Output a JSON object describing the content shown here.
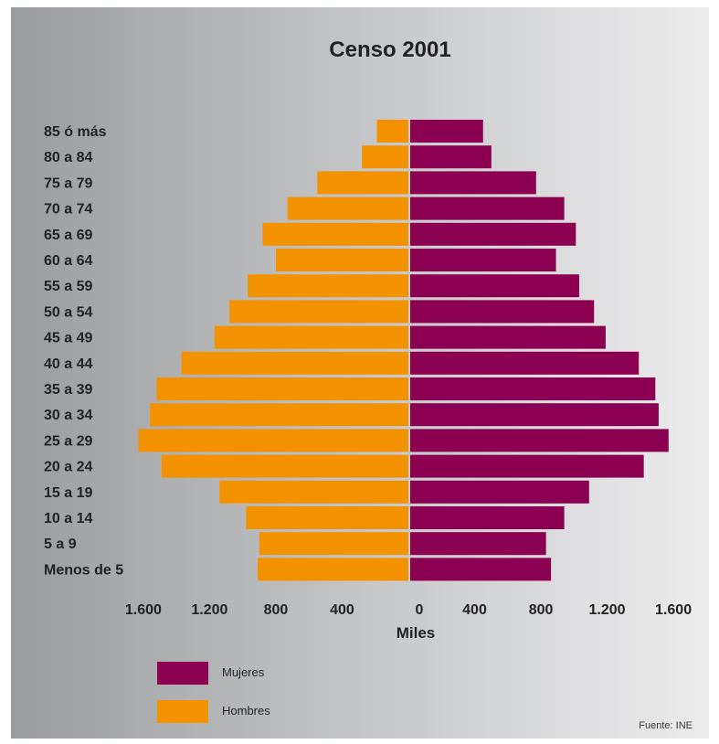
{
  "chart_data": {
    "type": "bar",
    "orientation": "horizontal",
    "title": "Censo 2001",
    "xlabel": "Miles",
    "xlim": [
      -1800,
      1800
    ],
    "x_tick_labels": [
      "1.600",
      "1.200",
      "800",
      "400",
      "0",
      "400",
      "800",
      "1.200",
      "1.600"
    ],
    "categories": [
      "85 ó más",
      "80 a 84",
      "75 a 79",
      "70 a 74",
      "65 a 69",
      "60 a 64",
      "55 a 59",
      "50 a 54",
      "45 a 49",
      "40 a 44",
      "35 a 39",
      "30 a 34",
      "25 a 29",
      "20 a 24",
      "15 a 19",
      "10 a 14",
      "5 a 9",
      "Menos de 5"
    ],
    "series": [
      {
        "name": "Mujeres",
        "color": "#8b0050",
        "values": [
          440,
          490,
          760,
          930,
          1000,
          880,
          1020,
          1110,
          1180,
          1380,
          1480,
          1500,
          1560,
          1410,
          1080,
          930,
          820,
          850
        ]
      },
      {
        "name": "Hombres",
        "color": "#f39200",
        "values": [
          190,
          280,
          550,
          730,
          880,
          800,
          970,
          1080,
          1170,
          1370,
          1520,
          1560,
          1630,
          1490,
          1140,
          980,
          900,
          910
        ]
      }
    ],
    "legend": {
      "position": "bottom-left",
      "entries": [
        {
          "label": "Mujeres",
          "color": "#8b0050"
        },
        {
          "label": "Hombres",
          "color": "#f39200"
        }
      ]
    },
    "grid": false,
    "source": "Fuente: INE"
  }
}
